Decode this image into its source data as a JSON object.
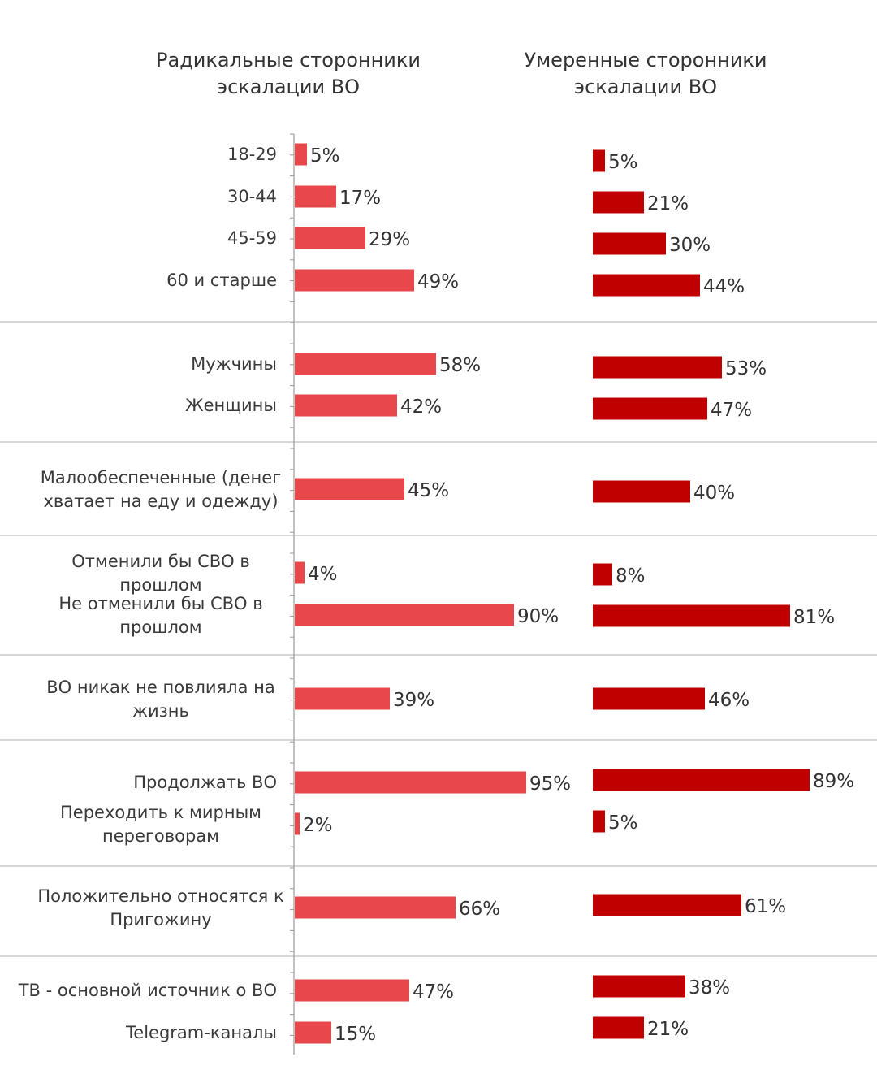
{
  "headers": {
    "left": "Радикальные сторонники эскалации ВО",
    "right": "Умеренные сторонники эскалации ВО"
  },
  "colors": {
    "left": "#E8474B",
    "right": "#C00000",
    "axis": "#999999",
    "separator": "#bfbfbf"
  },
  "chart_data": {
    "type": "bar",
    "orientation": "horizontal",
    "xlim": [
      0,
      100
    ],
    "unit": "%",
    "series": [
      {
        "name": "Радикальные сторонники эскалации ВО",
        "values": [
          5,
          17,
          29,
          49,
          58,
          42,
          45,
          4,
          90,
          39,
          95,
          2,
          66,
          47,
          15
        ]
      },
      {
        "name": "Умеренные сторонники эскалации ВО",
        "values": [
          5,
          21,
          30,
          44,
          53,
          47,
          40,
          8,
          81,
          46,
          89,
          5,
          61,
          38,
          21
        ]
      }
    ],
    "categories": [
      {
        "lines": [
          "18-29"
        ],
        "group": 0
      },
      {
        "lines": [
          "30-44"
        ],
        "group": 0
      },
      {
        "lines": [
          "45-59"
        ],
        "group": 0
      },
      {
        "lines": [
          "60 и старше"
        ],
        "group": 0
      },
      {
        "lines": [
          "Мужчины"
        ],
        "group": 1
      },
      {
        "lines": [
          "Женщины"
        ],
        "group": 1
      },
      {
        "lines": [
          "Малообеспеченные (денег",
          "хватает на еду и одежду)"
        ],
        "group": 2
      },
      {
        "lines": [
          "Отменили бы СВО в",
          "прошлом"
        ],
        "group": 3
      },
      {
        "lines": [
          "Не отменили бы СВО в",
          "прошлом"
        ],
        "group": 3
      },
      {
        "lines": [
          "ВО никак не повлияла на",
          "жизнь"
        ],
        "group": 4
      },
      {
        "lines": [
          "Продолжать ВО"
        ],
        "group": 5
      },
      {
        "lines": [
          "Переходить к мирным",
          "переговорам"
        ],
        "group": 5
      },
      {
        "lines": [
          "Положительно относятся к",
          "Пригожину"
        ],
        "group": 6
      },
      {
        "lines": [
          "ТВ - основной источник о ВО"
        ],
        "group": 7
      },
      {
        "lines": [
          "Telegram-каналы"
        ],
        "group": 7
      }
    ]
  }
}
